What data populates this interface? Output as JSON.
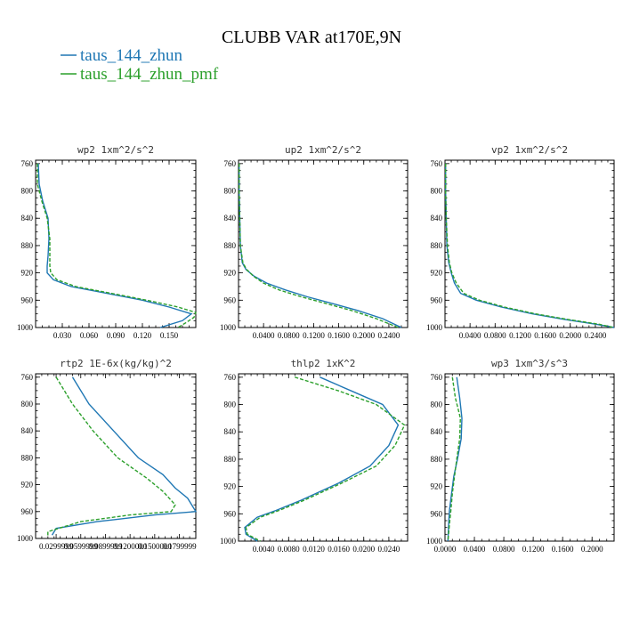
{
  "figure": {
    "title": "CLUBB VAR at170E,9N",
    "legend": [
      {
        "label": "taus_144_zhun",
        "color": "#1f77b4"
      },
      {
        "label": "taus_144_zhun_pmf",
        "color": "#2ca02c"
      }
    ]
  },
  "chart_data": [
    {
      "type": "line",
      "title": "wp2  1xm^2/s^2",
      "xlim": [
        0.0,
        0.18
      ],
      "xticks": [
        0.03,
        0.06,
        0.09,
        0.12,
        0.15
      ],
      "xtick_labels": [
        "0.030",
        "0.060",
        "0.090",
        "0.120",
        "0.150"
      ],
      "ylim": [
        1000,
        755
      ],
      "yticks": [
        760,
        800,
        840,
        880,
        920,
        960,
        1000
      ],
      "ytick_labels": [
        "760",
        "800",
        "840",
        "880",
        "920",
        "960",
        "1000"
      ],
      "series": [
        {
          "name": "taus_144_zhun",
          "color": "#1f77b4",
          "dash": "",
          "points": [
            [
              0.003,
              760
            ],
            [
              0.004,
              790
            ],
            [
              0.008,
              815
            ],
            [
              0.014,
              840
            ],
            [
              0.015,
              870
            ],
            [
              0.014,
              895
            ],
            [
              0.013,
              910
            ],
            [
              0.013,
              920
            ],
            [
              0.02,
              930
            ],
            [
              0.04,
              940
            ],
            [
              0.08,
              950
            ],
            [
              0.12,
              960
            ],
            [
              0.15,
              970
            ],
            [
              0.175,
              980
            ],
            [
              0.165,
              990
            ],
            [
              0.14,
              1000
            ]
          ]
        },
        {
          "name": "taus_144_zhun_pmf",
          "color": "#2ca02c",
          "dash": "4,2",
          "points": [
            [
              0.002,
              760
            ],
            [
              0.002,
              790
            ],
            [
              0.007,
              815
            ],
            [
              0.013,
              840
            ],
            [
              0.016,
              870
            ],
            [
              0.016,
              895
            ],
            [
              0.016,
              910
            ],
            [
              0.017,
              920
            ],
            [
              0.024,
              930
            ],
            [
              0.045,
              940
            ],
            [
              0.085,
              950
            ],
            [
              0.125,
              960
            ],
            [
              0.16,
              970
            ],
            [
              0.18,
              978
            ],
            [
              0.178,
              985
            ],
            [
              0.17,
              992
            ],
            [
              0.16,
              1000
            ]
          ]
        }
      ]
    },
    {
      "type": "line",
      "title": "up2  1xm^2/s^2",
      "xlim": [
        0.0,
        0.27
      ],
      "xticks": [
        0.04,
        0.08,
        0.12,
        0.16,
        0.2,
        0.24
      ],
      "xtick_labels": [
        "0.0400",
        "0.0800",
        "0.1200",
        "0.1600",
        "0.2000",
        "0.2400"
      ],
      "ylim": [
        1000,
        755
      ],
      "yticks": [
        760,
        800,
        840,
        880,
        920,
        960,
        1000
      ],
      "ytick_labels": [
        "760",
        "800",
        "840",
        "880",
        "920",
        "960",
        "1000"
      ],
      "series": [
        {
          "name": "taus_144_zhun",
          "color": "#1f77b4",
          "dash": "",
          "points": [
            [
              0.001,
              760
            ],
            [
              0.001,
              800
            ],
            [
              0.002,
              840
            ],
            [
              0.003,
              880
            ],
            [
              0.006,
              905
            ],
            [
              0.012,
              915
            ],
            [
              0.025,
              925
            ],
            [
              0.045,
              935
            ],
            [
              0.075,
              945
            ],
            [
              0.11,
              955
            ],
            [
              0.15,
              965
            ],
            [
              0.19,
              975
            ],
            [
              0.23,
              987
            ],
            [
              0.26,
              1000
            ]
          ]
        },
        {
          "name": "taus_144_zhun_pmf",
          "color": "#2ca02c",
          "dash": "4,2",
          "points": [
            [
              0.001,
              760
            ],
            [
              0.001,
              800
            ],
            [
              0.002,
              840
            ],
            [
              0.003,
              880
            ],
            [
              0.007,
              905
            ],
            [
              0.013,
              915
            ],
            [
              0.024,
              925
            ],
            [
              0.04,
              935
            ],
            [
              0.065,
              945
            ],
            [
              0.1,
              955
            ],
            [
              0.14,
              965
            ],
            [
              0.18,
              975
            ],
            [
              0.22,
              987
            ],
            [
              0.255,
              1000
            ]
          ]
        }
      ]
    },
    {
      "type": "line",
      "title": "vp2  1xm^2/s^2",
      "xlim": [
        0.0,
        0.27
      ],
      "xticks": [
        0.04,
        0.08,
        0.12,
        0.16,
        0.2,
        0.24
      ],
      "xtick_labels": [
        "0.0400",
        "0.0800",
        "0.1200",
        "0.1600",
        "0.2000",
        "0.2400"
      ],
      "ylim": [
        1000,
        755
      ],
      "yticks": [
        760,
        800,
        840,
        880,
        920,
        960,
        1000
      ],
      "ytick_labels": [
        "760",
        "800",
        "840",
        "880",
        "920",
        "960",
        "1000"
      ],
      "series": [
        {
          "name": "taus_144_zhun",
          "color": "#1f77b4",
          "dash": "",
          "points": [
            [
              0.001,
              760
            ],
            [
              0.001,
              800
            ],
            [
              0.002,
              840
            ],
            [
              0.003,
              880
            ],
            [
              0.006,
              905
            ],
            [
              0.01,
              920
            ],
            [
              0.015,
              935
            ],
            [
              0.025,
              950
            ],
            [
              0.05,
              960
            ],
            [
              0.09,
              970
            ],
            [
              0.14,
              980
            ],
            [
              0.19,
              988
            ],
            [
              0.24,
              995
            ],
            [
              0.27,
              1000
            ]
          ]
        },
        {
          "name": "taus_144_zhun_pmf",
          "color": "#2ca02c",
          "dash": "4,2",
          "points": [
            [
              0.001,
              760
            ],
            [
              0.001,
              800
            ],
            [
              0.002,
              840
            ],
            [
              0.004,
              880
            ],
            [
              0.007,
              905
            ],
            [
              0.011,
              920
            ],
            [
              0.018,
              935
            ],
            [
              0.03,
              950
            ],
            [
              0.055,
              960
            ],
            [
              0.095,
              970
            ],
            [
              0.145,
              980
            ],
            [
              0.195,
              988
            ],
            [
              0.245,
              995
            ],
            [
              0.27,
              1000
            ]
          ]
        }
      ]
    },
    {
      "type": "line",
      "title": "rtp2  1E-6x(kg/kg)^2",
      "xlim": [
        0.005,
        0.2
      ],
      "xticks": [
        0.03,
        0.06,
        0.09,
        0.12,
        0.15,
        0.18
      ],
      "xtick_labels": [
        "0.0299999",
        "0.0599999",
        "0.0899999",
        "0.1200000",
        "0.1500000",
        "0.1799999"
      ],
      "ylim": [
        1000,
        755
      ],
      "yticks": [
        760,
        800,
        840,
        880,
        920,
        960,
        1000
      ],
      "ytick_labels": [
        "760",
        "800",
        "840",
        "880",
        "920",
        "960",
        "1000"
      ],
      "series": [
        {
          "name": "taus_144_zhun",
          "color": "#1f77b4",
          "dash": "",
          "points": [
            [
              0.05,
              760
            ],
            [
              0.07,
              800
            ],
            [
              0.1,
              840
            ],
            [
              0.13,
              880
            ],
            [
              0.16,
              905
            ],
            [
              0.175,
              925
            ],
            [
              0.19,
              940
            ],
            [
              0.2,
              960
            ],
            [
              0.15,
              965
            ],
            [
              0.08,
              975
            ],
            [
              0.03,
              985
            ],
            [
              0.025,
              995
            ]
          ]
        },
        {
          "name": "taus_144_zhun_pmf",
          "color": "#2ca02c",
          "dash": "4,2",
          "points": [
            [
              0.03,
              760
            ],
            [
              0.05,
              800
            ],
            [
              0.075,
              840
            ],
            [
              0.105,
              880
            ],
            [
              0.14,
              910
            ],
            [
              0.16,
              930
            ],
            [
              0.175,
              950
            ],
            [
              0.17,
              960
            ],
            [
              0.12,
              965
            ],
            [
              0.06,
              975
            ],
            [
              0.02,
              990
            ],
            [
              0.02,
              998
            ]
          ]
        }
      ]
    },
    {
      "type": "line",
      "title": "thlp2  1xK^2",
      "xlim": [
        0.0,
        0.027
      ],
      "xticks": [
        0.004,
        0.008,
        0.012,
        0.016,
        0.02,
        0.024
      ],
      "xtick_labels": [
        "0.0040",
        "0.0080",
        "0.0120",
        "0.0160",
        "0.0200",
        "0.0240"
      ],
      "ylim": [
        1000,
        755
      ],
      "yticks": [
        760,
        800,
        840,
        880,
        920,
        960,
        1000
      ],
      "ytick_labels": [
        "760",
        "800",
        "840",
        "880",
        "920",
        "960",
        "1000"
      ],
      "series": [
        {
          "name": "taus_144_zhun",
          "color": "#1f77b4",
          "dash": "",
          "points": [
            [
              0.013,
              760
            ],
            [
              0.018,
              780
            ],
            [
              0.023,
              800
            ],
            [
              0.0255,
              830
            ],
            [
              0.024,
              860
            ],
            [
              0.021,
              890
            ],
            [
              0.016,
              915
            ],
            [
              0.01,
              940
            ],
            [
              0.006,
              955
            ],
            [
              0.003,
              965
            ],
            [
              0.001,
              980
            ],
            [
              0.0012,
              990
            ],
            [
              0.003,
              1000
            ]
          ]
        },
        {
          "name": "taus_144_zhun_pmf",
          "color": "#2ca02c",
          "dash": "4,2",
          "points": [
            [
              0.009,
              760
            ],
            [
              0.016,
              780
            ],
            [
              0.022,
              800
            ],
            [
              0.0265,
              830
            ],
            [
              0.025,
              860
            ],
            [
              0.022,
              890
            ],
            [
              0.0165,
              915
            ],
            [
              0.0105,
              940
            ],
            [
              0.0065,
              955
            ],
            [
              0.0035,
              965
            ],
            [
              0.0012,
              980
            ],
            [
              0.0014,
              990
            ],
            [
              0.0035,
              1000
            ]
          ]
        }
      ]
    },
    {
      "type": "line",
      "title": "wp3  1xm^3/s^3",
      "xlim": [
        0.0,
        0.23
      ],
      "xticks": [
        0.0,
        0.04,
        0.08,
        0.12,
        0.16,
        0.2
      ],
      "xtick_labels": [
        "0.0000",
        "0.0400",
        "0.0800",
        "0.1200",
        "0.1600",
        "0.2000"
      ],
      "ylim": [
        1000,
        755
      ],
      "yticks": [
        760,
        800,
        840,
        880,
        920,
        960,
        1000
      ],
      "ytick_labels": [
        "760",
        "800",
        "840",
        "880",
        "920",
        "960",
        "1000"
      ],
      "series": [
        {
          "name": "taus_144_zhun",
          "color": "#1f77b4",
          "dash": "",
          "points": [
            [
              0.016,
              760
            ],
            [
              0.02,
              790
            ],
            [
              0.023,
              820
            ],
            [
              0.022,
              850
            ],
            [
              0.017,
              880
            ],
            [
              0.012,
              905
            ],
            [
              0.009,
              930
            ],
            [
              0.006,
              955
            ],
            [
              0.005,
              975
            ],
            [
              0.004,
              1000
            ]
          ]
        },
        {
          "name": "taus_144_zhun_pmf",
          "color": "#2ca02c",
          "dash": "4,2",
          "points": [
            [
              0.01,
              760
            ],
            [
              0.014,
              790
            ],
            [
              0.021,
              820
            ],
            [
              0.02,
              850
            ],
            [
              0.016,
              880
            ],
            [
              0.013,
              905
            ],
            [
              0.01,
              930
            ],
            [
              0.008,
              955
            ],
            [
              0.006,
              975
            ],
            [
              0.004,
              1000
            ]
          ]
        }
      ]
    }
  ]
}
